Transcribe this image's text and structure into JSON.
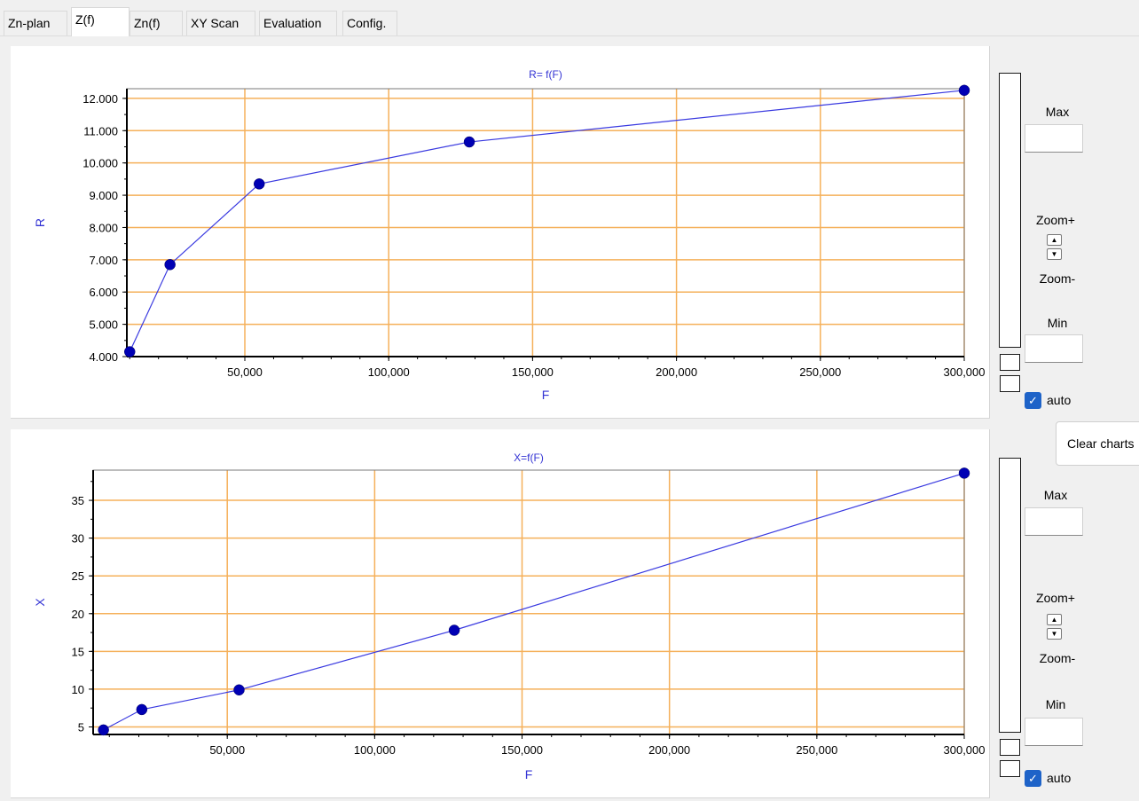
{
  "tabs": [
    {
      "label": "Zn-plan",
      "active": false
    },
    {
      "label": "Z(f)",
      "active": true
    },
    {
      "label": "Zn(f)",
      "active": false
    },
    {
      "label": "XY Scan",
      "active": false
    },
    {
      "label": "Evaluation",
      "active": false
    },
    {
      "label": "Config.",
      "active": false
    }
  ],
  "controls": {
    "top": {
      "max_label": "Max",
      "zoom_plus_label": "Zoom+",
      "zoom_minus_label": "Zoom-",
      "min_label": "Min",
      "auto_label": "auto",
      "auto_checked": true,
      "max_value": "",
      "min_value": ""
    },
    "bottom": {
      "max_label": "Max",
      "zoom_plus_label": "Zoom+",
      "zoom_minus_label": "Zoom-",
      "min_label": "Min",
      "auto_label": "auto",
      "auto_checked": true,
      "max_value": "",
      "min_value": ""
    },
    "clear_charts_label": "Clear charts"
  },
  "colors": {
    "grid": "#f5b05a",
    "series": "#3a3ae0",
    "marker": "#0000b4",
    "title": "#3434d4"
  },
  "chart_data": [
    {
      "type": "line",
      "title": "R= f(F)",
      "xlabel": "F",
      "ylabel": "R",
      "xlim": [
        9000,
        300000
      ],
      "ylim": [
        4000,
        12300
      ],
      "xticks": [
        50000,
        100000,
        150000,
        200000,
        250000,
        300000
      ],
      "xtick_labels": [
        "50,000",
        "100,000",
        "150,000",
        "200,000",
        "250,000",
        "300,000"
      ],
      "yticks": [
        4000,
        5000,
        6000,
        7000,
        8000,
        9000,
        10000,
        11000,
        12000
      ],
      "ytick_labels": [
        "4.000",
        "5.000",
        "6.000",
        "7.000",
        "8.000",
        "9.000",
        "10.000",
        "11.000",
        "12.000"
      ],
      "grid": true,
      "series": [
        {
          "x": [
            10000,
            24000,
            55000,
            128000,
            300000
          ],
          "y": [
            4150,
            6850,
            9350,
            10650,
            12250
          ]
        }
      ]
    },
    {
      "type": "line",
      "title": "X=f(F)",
      "xlabel": "F",
      "ylabel": "X",
      "xlim": [
        4500,
        300000
      ],
      "ylim": [
        4,
        39
      ],
      "xticks": [
        50000,
        100000,
        150000,
        200000,
        250000,
        300000
      ],
      "xtick_labels": [
        "50,000",
        "100,000",
        "150,000",
        "200,000",
        "250,000",
        "300,000"
      ],
      "yticks": [
        5,
        10,
        15,
        20,
        25,
        30,
        35
      ],
      "ytick_labels": [
        "5",
        "10",
        "15",
        "20",
        "25",
        "30",
        "35"
      ],
      "grid": true,
      "series": [
        {
          "x": [
            8000,
            21000,
            54000,
            127000,
            300000
          ],
          "y": [
            4.6,
            7.3,
            9.9,
            17.8,
            38.6
          ]
        }
      ]
    }
  ]
}
